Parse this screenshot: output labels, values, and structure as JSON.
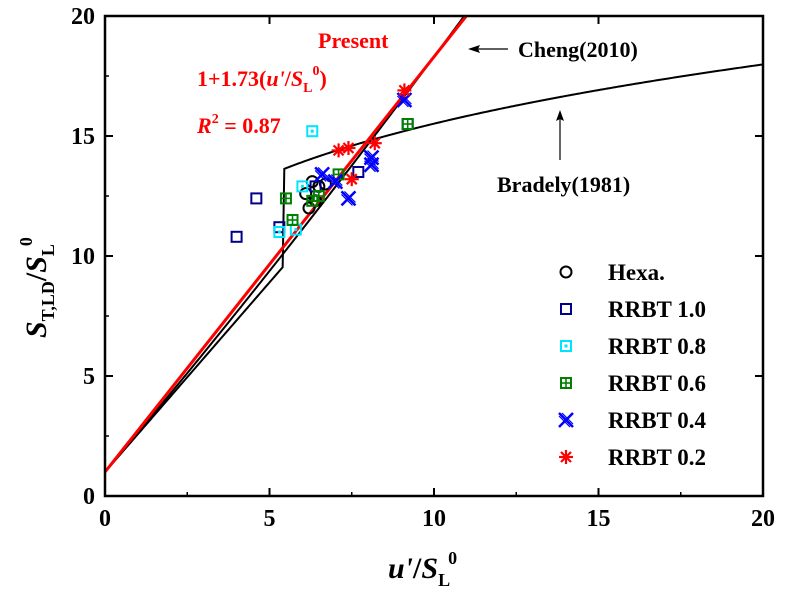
{
  "chart_data": {
    "type": "scatter",
    "title": "",
    "xlabel": "u'/S_L^0",
    "ylabel": "S_T,LD/S_L^0",
    "xlim": [
      0,
      20
    ],
    "ylim": [
      0,
      20
    ],
    "xticks": [
      0,
      5,
      10,
      15,
      20
    ],
    "yticks": [
      0,
      5,
      10,
      15,
      20
    ],
    "legend_position": "bottom-right",
    "series": [
      {
        "name": "Hexa.",
        "marker": "circle",
        "color": "#000000",
        "points": [
          [
            6.1,
            12.6
          ],
          [
            6.3,
            13.1
          ],
          [
            6.5,
            12.9
          ],
          [
            6.2,
            12.0
          ],
          [
            6.4,
            12.3
          ],
          [
            6.7,
            13.0
          ]
        ]
      },
      {
        "name": "RRBT 1.0",
        "marker": "square",
        "color": "#00008B",
        "points": [
          [
            4.0,
            10.8
          ],
          [
            4.6,
            12.4
          ],
          [
            5.3,
            11.2
          ],
          [
            6.4,
            12.9
          ],
          [
            7.7,
            13.5
          ],
          [
            9.2,
            15.5
          ]
        ]
      },
      {
        "name": "RRBT 0.8",
        "marker": "square-dot",
        "color": "#00E5FF",
        "points": [
          [
            5.3,
            11.0
          ],
          [
            5.8,
            11.1
          ],
          [
            6.0,
            12.9
          ],
          [
            6.3,
            15.2
          ]
        ]
      },
      {
        "name": "RRBT 0.6",
        "marker": "square-cross",
        "color": "#008000",
        "points": [
          [
            5.5,
            12.4
          ],
          [
            5.7,
            11.5
          ],
          [
            6.3,
            12.3
          ],
          [
            6.5,
            12.5
          ],
          [
            7.1,
            13.4
          ],
          [
            9.2,
            15.5
          ]
        ]
      },
      {
        "name": "RRBT 0.4",
        "marker": "xstar",
        "color": "#0000FF",
        "points": [
          [
            6.6,
            13.4
          ],
          [
            7.0,
            13.1
          ],
          [
            7.4,
            12.4
          ],
          [
            8.1,
            14.1
          ],
          [
            8.1,
            13.8
          ],
          [
            9.1,
            16.5
          ]
        ]
      },
      {
        "name": "RRBT 0.2",
        "marker": "asterisk",
        "color": "#FF0000",
        "points": [
          [
            7.1,
            14.4
          ],
          [
            7.4,
            14.5
          ],
          [
            7.5,
            13.2
          ],
          [
            8.2,
            14.7
          ],
          [
            9.1,
            16.9
          ]
        ]
      }
    ],
    "curves": [
      {
        "name": "Present",
        "color": "#FF0000",
        "formula": "y = 1 + 1.73x"
      },
      {
        "name": "Cheng(2010)",
        "color": "#000000"
      },
      {
        "name": "Bradely(1981)",
        "color": "#000000"
      }
    ],
    "annotations": {
      "present": "Present",
      "fit_formula_prefix": "1+1.73(",
      "fit_formula_var": "u'",
      "fit_formula_slash": "/",
      "fit_formula_S": "S",
      "fit_formula_sub": "L",
      "fit_formula_sup": "0",
      "fit_formula_close": ")",
      "r2_R": "R",
      "r2_sup": "2",
      "r2_value": " = 0.87",
      "cheng": "Cheng(2010)",
      "bradley": "Bradely(1981)"
    },
    "axis_text": {
      "x_main": "u'",
      "x_slash": "/",
      "x_S": "S",
      "x_sub": "L",
      "x_sup": "0",
      "y_S": "S",
      "y_sub": "T,LD",
      "y_slash": "/",
      "y_S2": "S",
      "y_sub2": "L",
      "y_sup2": "0"
    }
  }
}
